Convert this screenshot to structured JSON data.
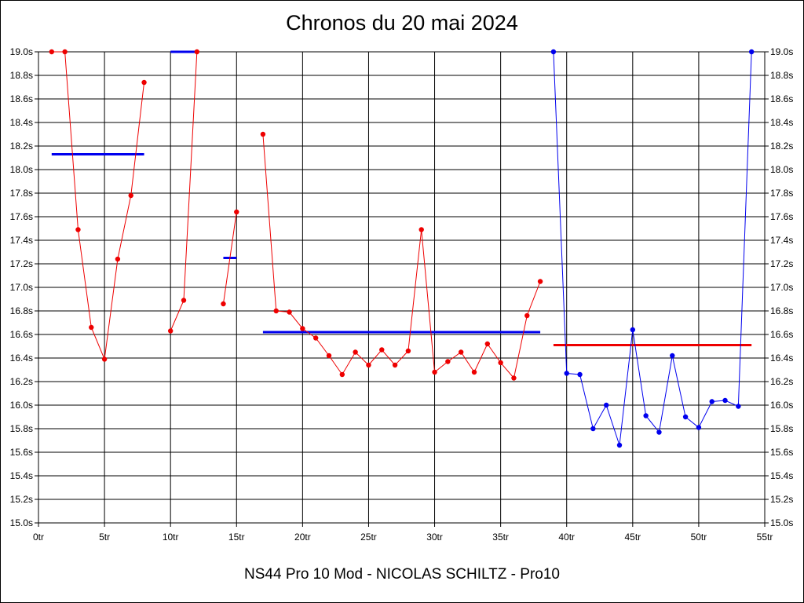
{
  "title": "Chronos du 20 mai 2024",
  "subtitle": "NS44 Pro 10 Mod - NICOLAS SCHILTZ - Pro10",
  "colors": {
    "red": "#ee0000",
    "blue": "#0000ee",
    "grid": "#000000",
    "background": "#ffffff"
  },
  "chart_data": {
    "type": "line",
    "grid": true,
    "xlim": [
      0,
      55
    ],
    "ylim": [
      15.0,
      19.0
    ],
    "x_ticks": [
      "0tr",
      "5tr",
      "10tr",
      "15tr",
      "20tr",
      "25tr",
      "30tr",
      "35tr",
      "40tr",
      "45tr",
      "50tr",
      "55tr"
    ],
    "y_ticks": [
      "15.0s",
      "15.2s",
      "15.4s",
      "15.6s",
      "15.8s",
      "16.0s",
      "16.2s",
      "16.4s",
      "16.6s",
      "16.8s",
      "17.0s",
      "17.2s",
      "17.4s",
      "17.6s",
      "17.8s",
      "18.0s",
      "18.2s",
      "18.4s",
      "18.6s",
      "18.8s",
      "19.0s"
    ],
    "series": [
      {
        "color": "#ee0000",
        "x": [
          1,
          2,
          3,
          4,
          5,
          6,
          7,
          8
        ],
        "values": [
          19.0,
          19.0,
          17.49,
          16.66,
          16.39,
          17.24,
          17.78,
          18.74
        ]
      },
      {
        "color": "#ee0000",
        "x": [
          10,
          11,
          12
        ],
        "values": [
          16.63,
          16.89,
          19.0
        ]
      },
      {
        "color": "#ee0000",
        "x": [
          14,
          15
        ],
        "values": [
          16.86,
          17.64
        ]
      },
      {
        "color": "#ee0000",
        "x": [
          17,
          18,
          19,
          20,
          21,
          22,
          23,
          24,
          25,
          26,
          27,
          28,
          29,
          30,
          31,
          32,
          33,
          34,
          35,
          36,
          37,
          38
        ],
        "values": [
          18.3,
          16.8,
          16.79,
          16.65,
          16.57,
          16.42,
          16.26,
          16.45,
          16.34,
          16.47,
          16.34,
          16.46,
          17.49,
          16.28,
          16.37,
          16.45,
          16.28,
          16.52,
          16.36,
          16.23,
          16.76,
          17.05
        ]
      },
      {
        "color": "#0000ee",
        "x": [
          39,
          40,
          41,
          42,
          43,
          44,
          45,
          46,
          47,
          48,
          49,
          50,
          51,
          52,
          53,
          54
        ],
        "values": [
          19.0,
          16.27,
          16.26,
          15.8,
          16.0,
          15.66,
          16.64,
          15.91,
          15.77,
          16.42,
          15.9,
          15.81,
          16.03,
          16.04,
          15.99,
          19.0
        ]
      }
    ],
    "mean_lines": [
      {
        "color": "#0000ee",
        "x": [
          1,
          8
        ],
        "value": 18.13
      },
      {
        "color": "#0000ee",
        "x": [
          10,
          12
        ],
        "value": 19.0
      },
      {
        "color": "#0000ee",
        "x": [
          14,
          15
        ],
        "value": 17.25
      },
      {
        "color": "#0000ee",
        "x": [
          17,
          38
        ],
        "value": 16.62
      },
      {
        "color": "#ee0000",
        "x": [
          39,
          54
        ],
        "value": 16.51
      }
    ]
  }
}
